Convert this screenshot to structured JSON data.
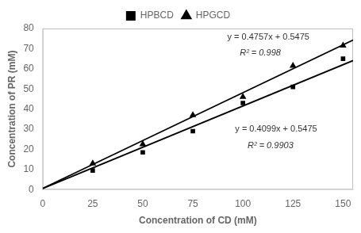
{
  "chart_data": {
    "type": "scatter",
    "xlabel": "Concentration of CD (mM)",
    "ylabel": "Concentration of PR (mM)",
    "series": [
      {
        "type": "line",
        "color": "#000000",
        "line_style": "solid",
        "x": [
          0,
          155
        ],
        "values": [
          0.5475,
          64.082
        ]
      },
      {
        "type": "line",
        "color": "#000000",
        "line_style": "solid",
        "x": [
          0,
          155
        ],
        "values": [
          0.5475,
          74.281
        ]
      },
      {
        "name": "HPBCD",
        "type": "scatter",
        "color": "#000000",
        "marker": "square",
        "x": [
          25,
          50,
          75,
          100,
          125,
          150
        ],
        "values": [
          9.5,
          18.5,
          29.0,
          43.0,
          51.0,
          65.0
        ]
      },
      {
        "name": "HPGCD",
        "type": "scatter",
        "color": "#000000",
        "marker": "triangle",
        "x": [
          25,
          50,
          75,
          100,
          125,
          150
        ],
        "values": [
          13.0,
          22.5,
          37.0,
          46.0,
          61.5,
          71.5
        ]
      }
    ],
    "annotations": [
      "y = 0.4757x + 0.5475",
      "R² = 0.998",
      "y = 0.4099x + 0.5475",
      "R² = 0.9903"
    ],
    "xlim": [
      0,
      155
    ],
    "ylim": [
      0,
      80
    ],
    "xticks": [
      0,
      25,
      50,
      75,
      100,
      125,
      150
    ],
    "yticks": [
      0,
      10,
      20,
      30,
      40,
      50,
      60,
      70,
      80
    ],
    "grid": false,
    "legend": "top"
  }
}
